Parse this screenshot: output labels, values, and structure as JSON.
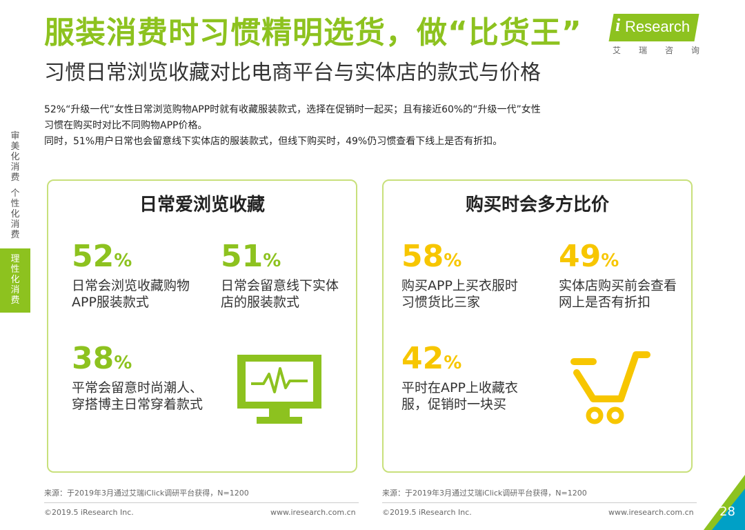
{
  "header": {
    "title": "服装消费时习惯精明选货，做“比货王”",
    "subtitle": "习惯日常浏览收藏对比电商平台与实体店的款式与价格",
    "description": [
      "52%“升级一代”女性日常浏览购物APP时就有收藏服装款式，选择在促销时一起买；且有接近60%的“升级一代”女性",
      "习惯在购买时对比不同购物APP价格。",
      "同时，51%用户日常也会留意线下实体店的服装款式，但线下购买时，49%仍习惯查看下线上是否有折扣。"
    ]
  },
  "logo": {
    "i": "i",
    "text": "Research",
    "sub": [
      "艾",
      "瑞",
      "咨",
      "询"
    ]
  },
  "sidebar": {
    "items": [
      {
        "label": [
          "审",
          "美",
          "化",
          "消",
          "费"
        ],
        "active": false
      },
      {
        "label": [
          "个",
          "性",
          "化",
          "消",
          "费"
        ],
        "active": false
      },
      {
        "label": [
          "理",
          "性",
          "化",
          "消",
          "费"
        ],
        "active": true
      }
    ]
  },
  "left_panel": {
    "title": "日常爱浏览收藏",
    "stats": [
      {
        "value": "52",
        "unit": "%",
        "label": [
          "日常会浏览收藏购物",
          "APP服装款式"
        ]
      },
      {
        "value": "51",
        "unit": "%",
        "label": [
          "日常会留意线下实体",
          "店的服装款式"
        ]
      },
      {
        "value": "38",
        "unit": "%",
        "label": [
          "平常会留意时尚潮人、",
          "穿搭博主日常穿着款式"
        ]
      }
    ],
    "icon": "monitor-pulse-icon"
  },
  "right_panel": {
    "title": "购买时会多方比价",
    "stats": [
      {
        "value": "58",
        "unit": "%",
        "label": [
          "购买APP上买衣服时",
          "习惯货比三家"
        ]
      },
      {
        "value": "49",
        "unit": "%",
        "label": [
          "实体店购买前会查看",
          "网上是否有折扣"
        ]
      },
      {
        "value": "42",
        "unit": "%",
        "label": [
          "平时在APP上收藏衣",
          "服，促销时一块买"
        ]
      }
    ],
    "icon": "shopping-cart-icon"
  },
  "footer": {
    "source_left": "来源：于2019年3月通过艾瑞iClick调研平台获得，N=1200",
    "source_right": "来源：于2019年3月通过艾瑞iClick调研平台获得，N=1200",
    "copy_left": "©2019.5 iResearch Inc.",
    "url_left": "www.iresearch.com.cn",
    "copy_right": "©2019.5 iResearch Inc.",
    "url_right": "www.iresearch.com.cn",
    "page": "28"
  },
  "colors": {
    "green": "#8dc21f",
    "yellow": "#f7c600",
    "panel_border": "#c8e07b"
  }
}
